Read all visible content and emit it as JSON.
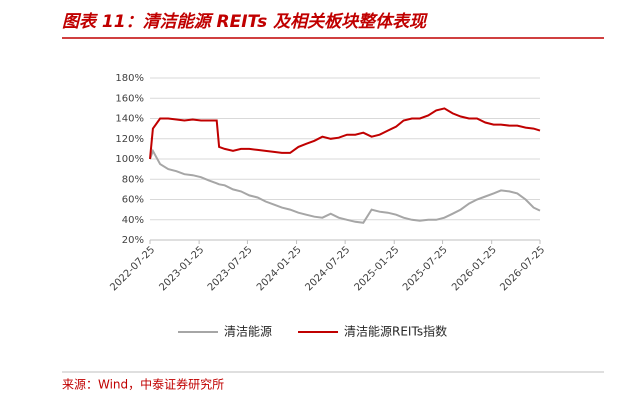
{
  "chart_data": {
    "type": "line",
    "title": "图表 11：清洁能源 REITs 及相关板块整体表现",
    "source": "来源：Wind，中泰证券研究所",
    "x": [
      "2022-07-25",
      "2022-08-05",
      "2022-09-01",
      "2022-10-01",
      "2022-11-01",
      "2022-12-01",
      "2023-01-01",
      "2023-02-01",
      "2023-03-01",
      "2023-04-01",
      "2023-04-10",
      "2023-05-01",
      "2023-06-01",
      "2023-07-01",
      "2023-08-01",
      "2023-09-01",
      "2023-10-01",
      "2023-11-01",
      "2023-12-01",
      "2024-01-01",
      "2024-02-01",
      "2024-03-01",
      "2024-04-01",
      "2024-05-01",
      "2024-06-01",
      "2024-07-01",
      "2024-08-01",
      "2024-09-01",
      "2024-10-01",
      "2024-11-01",
      "2024-12-01",
      "2025-01-01",
      "2025-02-01",
      "2025-03-01",
      "2025-04-01",
      "2025-05-01",
      "2025-06-01",
      "2025-07-01",
      "2025-08-01",
      "2025-09-01",
      "2025-10-01",
      "2025-11-01",
      "2025-12-01",
      "2026-01-01",
      "2026-02-01",
      "2026-03-01",
      "2026-04-01",
      "2026-05-01",
      "2026-06-01",
      "2026-07-01",
      "2026-07-25"
    ],
    "series": [
      {
        "name": "清洁能源",
        "color": "#a6a6a6",
        "values": [
          100,
          108,
          95,
          90,
          88,
          85,
          84,
          82,
          79,
          76,
          75,
          74,
          70,
          68,
          64,
          62,
          58,
          55,
          52,
          50,
          47,
          45,
          43,
          42,
          46,
          42,
          40,
          38,
          37,
          50,
          48,
          47,
          45,
          42,
          40,
          39,
          40,
          40,
          42,
          46,
          50,
          56,
          60,
          63,
          66,
          69,
          68,
          66,
          60,
          52,
          49
        ]
      },
      {
        "name": "清洁能源REITs指数",
        "color": "#c00000",
        "values": [
          100,
          130,
          140,
          140,
          139,
          138,
          139,
          138,
          138,
          138,
          112,
          110,
          108,
          110,
          110,
          109,
          108,
          107,
          106,
          106,
          112,
          115,
          118,
          122,
          120,
          121,
          124,
          124,
          126,
          122,
          124,
          128,
          132,
          138,
          140,
          140,
          143,
          148,
          150,
          145,
          142,
          140,
          140,
          136,
          134,
          134,
          133,
          133,
          131,
          130,
          128
        ]
      }
    ],
    "xlim": [
      "2022-07-25",
      "2026-07-25"
    ],
    "xticks": [
      "2022-07-25",
      "2023-01-25",
      "2023-07-25",
      "2024-01-25",
      "2024-07-25",
      "2025-01-25",
      "2025-07-25",
      "2026-01-25",
      "2026-07-25"
    ],
    "ylim": [
      20,
      180
    ],
    "yticks": [
      {
        "value": 20,
        "label": "20%"
      },
      {
        "value": 40,
        "label": "40%"
      },
      {
        "value": 60,
        "label": "60%"
      },
      {
        "value": 80,
        "label": "80%"
      },
      {
        "value": 100,
        "label": "100%"
      },
      {
        "value": 120,
        "label": "120%"
      },
      {
        "value": 140,
        "label": "140%"
      },
      {
        "value": 160,
        "label": "160%"
      },
      {
        "value": 180,
        "label": "180%"
      }
    ],
    "grid": true
  }
}
